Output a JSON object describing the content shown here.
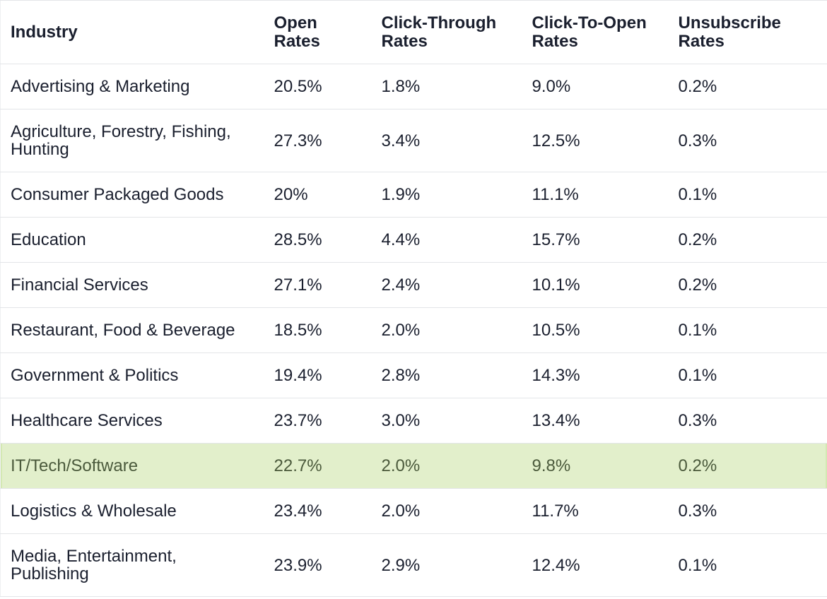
{
  "headers": [
    [
      "Industry"
    ],
    [
      "Open",
      "Rates"
    ],
    [
      "Click-Through",
      "Rates"
    ],
    [
      "Click-To-Open",
      "Rates"
    ],
    [
      "Unsubscribe",
      "Rates"
    ]
  ],
  "rows": [
    {
      "industry": [
        "Advertising & Marketing"
      ],
      "open": "20.5%",
      "ctr": "1.8%",
      "cto": "9.0%",
      "unsub": "0.2%"
    },
    {
      "industry": [
        "Agriculture, Forestry, Fishing,",
        "Hunting"
      ],
      "open": "27.3%",
      "ctr": "3.4%",
      "cto": "12.5%",
      "unsub": "0.3%"
    },
    {
      "industry": [
        "Consumer Packaged Goods"
      ],
      "open": "20%",
      "ctr": "1.9%",
      "cto": "11.1%",
      "unsub": "0.1%"
    },
    {
      "industry": [
        "Education"
      ],
      "open": "28.5%",
      "ctr": "4.4%",
      "cto": "15.7%",
      "unsub": "0.2%"
    },
    {
      "industry": [
        "Financial Services"
      ],
      "open": "27.1%",
      "ctr": "2.4%",
      "cto": "10.1%",
      "unsub": "0.2%"
    },
    {
      "industry": [
        "Restaurant, Food & Beverage"
      ],
      "open": "18.5%",
      "ctr": "2.0%",
      "cto": "10.5%",
      "unsub": "0.1%"
    },
    {
      "industry": [
        "Government & Politics"
      ],
      "open": "19.4%",
      "ctr": "2.8%",
      "cto": "14.3%",
      "unsub": "0.1%"
    },
    {
      "industry": [
        "Healthcare Services"
      ],
      "open": "23.7%",
      "ctr": "3.0%",
      "cto": "13.4%",
      "unsub": "0.3%"
    },
    {
      "industry": [
        "IT/Tech/Software"
      ],
      "open": "22.7%",
      "ctr": "2.0%",
      "cto": "9.8%",
      "unsub": "0.2%",
      "highlighted": true
    },
    {
      "industry": [
        "Logistics & Wholesale"
      ],
      "open": "23.4%",
      "ctr": "2.0%",
      "cto": "11.7%",
      "unsub": "0.3%"
    },
    {
      "industry": [
        "Media, Entertainment,",
        "Publishing"
      ],
      "open": "23.9%",
      "ctr": "2.9%",
      "cto": "12.4%",
      "unsub": "0.1%"
    }
  ],
  "colors": {
    "text": "#1a1f2e",
    "border": "#e3e5e8",
    "highlight_bg": "#e2efcb",
    "highlight_text": "#4b5a3c"
  }
}
